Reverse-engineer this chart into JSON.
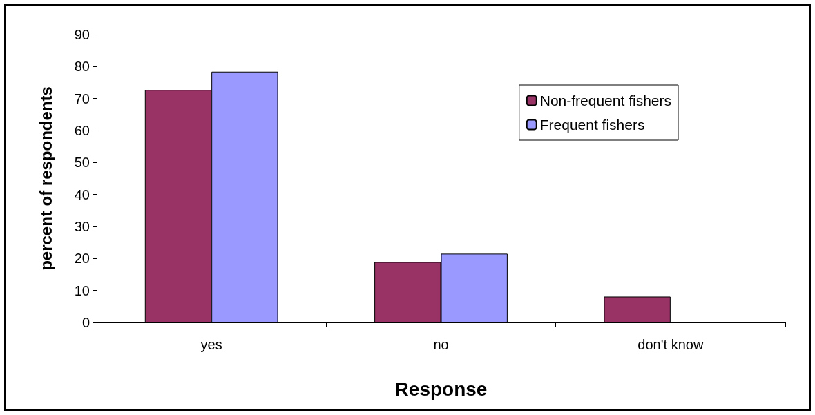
{
  "chart_data": {
    "type": "bar",
    "xlabel": "Response",
    "ylabel": "percent of respondents",
    "categories": [
      "yes",
      "no",
      "don't know"
    ],
    "series": [
      {
        "name": "Non-frequent fishers",
        "color": "#993366",
        "values": [
          72.7,
          18.9,
          8.1
        ]
      },
      {
        "name": "Frequent fishers",
        "color": "#9999ff",
        "values": [
          78.4,
          21.5,
          null
        ]
      }
    ],
    "ylim": [
      0,
      90
    ],
    "yticks": [
      0,
      10,
      20,
      30,
      40,
      50,
      60,
      70,
      80,
      90
    ],
    "grid": false,
    "legend": "top right"
  }
}
